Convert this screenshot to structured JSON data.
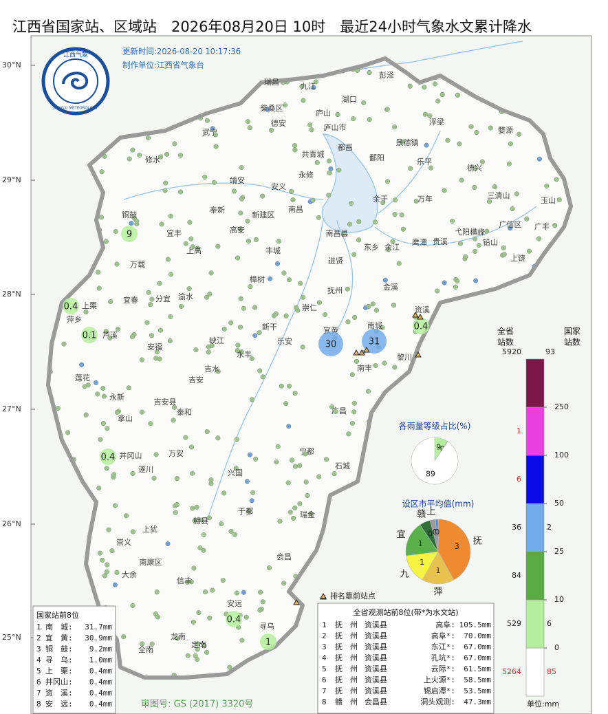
{
  "header": {
    "title": "江西省国家站、区域站　2026年08月20日 10时　最近24小时气象水文累计降水",
    "update_time": "更新时间:2026-08-20 10:17:36",
    "producer": "制作单位:江西省气象台",
    "logo_cn": "江西气象",
    "logo_en": "JIANGXI METEOROLOGY",
    "approval": "审图号: GS (2017) 3320号"
  },
  "latitudes": [
    "30°N",
    "29°N",
    "28°N",
    "27°N",
    "26°N",
    "25°N"
  ],
  "places": [
    "瑞昌",
    "九江",
    "湖口",
    "彭泽",
    "柴桑区",
    "庐山",
    "德安",
    "庐山市",
    "武宁",
    "都昌",
    "浮梁",
    "婺源",
    "景德镇",
    "修水",
    "共青城",
    "鄱阳",
    "乐平",
    "德兴",
    "永修",
    "靖安",
    "安义",
    "余干",
    "万年",
    "三清山",
    "玉山",
    "奉新",
    "新建区",
    "南昌",
    "铜鼓",
    "宜丰",
    "高安",
    "南昌县",
    "弋阳横峰",
    "广信区",
    "广丰",
    "上高",
    "丰城",
    "东乡",
    "余江",
    "鹰潭",
    "贵溪",
    "铅山",
    "万载",
    "进贤",
    "上饶",
    "樟树",
    "金溪",
    "抚州",
    "上栗",
    "宜春",
    "分宜",
    "渝水",
    "崇仁",
    "资溪",
    "萍乡",
    "芦溪",
    "新干",
    "乐安",
    "宜黄",
    "南城",
    "安福",
    "峡江",
    "永丰",
    "黎川",
    "南丰",
    "莲花",
    "吉水",
    "吉安",
    "永新",
    "吉安县",
    "泰和",
    "广昌",
    "拿山",
    "井冈山",
    "万安",
    "宁都",
    "遂川",
    "兴国",
    "石城",
    "于都",
    "瑞金",
    "赣县",
    "上犹",
    "崇义",
    "南康区",
    "会昌",
    "大余",
    "信丰",
    "安远",
    "寻乌",
    "龙南",
    "定南",
    "全南"
  ],
  "stations": [
    9,
    0.4,
    0.1,
    30,
    31,
    0.4,
    0.4,
    0.4,
    1
  ],
  "ranking_legend": "排名靠前站点",
  "rain_legend": {
    "province_header": [
      "全省",
      "站数"
    ],
    "national_header": [
      "国家",
      "站数"
    ],
    "province_total": 5920,
    "national_total": 93,
    "unit": "单位:mm",
    "levels": [
      0,
      10,
      25,
      50,
      100,
      250
    ],
    "segments": [
      {
        "color": "#ffffff",
        "province": 5264,
        "national": 85,
        "count_color": "#d03030"
      },
      {
        "color": "#b5ee9e",
        "province": 529,
        "national": 6,
        "count_color": "#222222"
      },
      {
        "color": "#5aaa46",
        "province": 84,
        "count_color": "#222222"
      },
      {
        "color": "#72aaea",
        "province": 36,
        "national": 2,
        "count_color": "#222222"
      },
      {
        "color": "#0a0ae6",
        "province": 6,
        "count_color": "#d03030"
      },
      {
        "color": "#e840e0",
        "province": 1,
        "count_color": "#d03030"
      },
      {
        "color": "#7a1648"
      }
    ]
  },
  "level_share": {
    "title": "各雨量等级占比(%)",
    "values": [
      9,
      0.4,
      89
    ],
    "value_labels": [
      "9",
      "0",
      "89"
    ],
    "colors": [
      "#b5ee9e",
      "#5aaa46",
      "#ffffff"
    ]
  },
  "city_mean": {
    "title": "设区市平均值(mm)",
    "names": [
      "抚",
      "萍",
      "九",
      "宜",
      "赣",
      "上",
      null
    ],
    "values": [
      3.1,
      1.2,
      1.1,
      1.3,
      0.4,
      0.2,
      0.1
    ],
    "value_labels": [
      "3",
      "1",
      "1",
      "1",
      "0",
      "0",
      "0"
    ],
    "colors": [
      "#f08a30",
      "#e8c24e",
      "#f6f442",
      "#5ab04a",
      "#2f6e3a",
      "#9a9a9a",
      "#5a8fd8"
    ]
  },
  "national_top8": {
    "title": "国家站前8位",
    "rows": [
      [
        "1",
        "南　城:",
        "31.7mm"
      ],
      [
        "2",
        "宜　黄:",
        "30.9mm"
      ],
      [
        "3",
        "铜　鼓:",
        "9.2mm"
      ],
      [
        "4",
        "寻　乌:",
        "1.0mm"
      ],
      [
        "5",
        "上　栗:",
        "0.4mm"
      ],
      [
        "6",
        "井冈山:",
        "0.4mm"
      ],
      [
        "7",
        "资　溪:",
        "0.4mm"
      ],
      [
        "8",
        "安　远:",
        "0.4mm"
      ]
    ]
  },
  "province_top8": {
    "title": "全省观测站前8位(带*为水文站)",
    "rows": [
      [
        "1",
        "抚　州",
        "资溪县",
        "高阜:",
        "105.5mm"
      ],
      [
        "2",
        "抚　州",
        "资溪县",
        "高阜*:",
        "70.0mm"
      ],
      [
        "3",
        "抚　州",
        "资溪县",
        "东江*:",
        "67.0mm"
      ],
      [
        "4",
        "抚　州",
        "资溪县",
        "孔坑*:",
        "67.0mm"
      ],
      [
        "5",
        "抚　州",
        "资溪县",
        "云际*:",
        "61.5mm"
      ],
      [
        "6",
        "抚　州",
        "资溪县",
        "上火源*:",
        "58.5mm"
      ],
      [
        "7",
        "抚　州",
        "资溪县",
        "锡启潭*:",
        "53.5mm"
      ],
      [
        "8",
        "赣　州",
        "会昌县",
        "洞头观测:",
        "47.3mm"
      ]
    ]
  }
}
